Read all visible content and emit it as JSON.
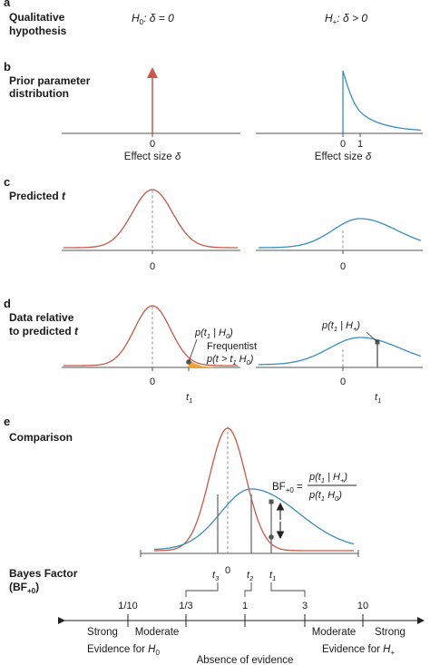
{
  "panels": {
    "a": {
      "letter": "a",
      "title_line1": "Qualitative",
      "title_line2": "hypothesis",
      "h0_hyp": "H",
      "h0_sub": "0",
      "h0_rest": ": δ = 0",
      "hplus_hyp": "H",
      "hplus_sub": "+",
      "hplus_rest": ": δ > 0"
    },
    "b": {
      "letter": "b",
      "title_line1": "Prior parameter",
      "title_line2": "distribution",
      "left_tick": "0",
      "right_tick0": "0",
      "right_tick1": "1",
      "xlabel": "Effect size",
      "xlabel_sym": "δ"
    },
    "c": {
      "letter": "c",
      "title": "Predicted",
      "title_sym": "t",
      "left_tick": "0",
      "right_tick": "0"
    },
    "d": {
      "letter": "d",
      "title_line1": "Data relative",
      "title_line2": "to predicted",
      "title_sym": "t",
      "left_annot": "p(t",
      "left_annot_sub": "1",
      "left_annot_rest": " | H",
      "left_annot_sub2": "0",
      "left_annot_end": ")",
      "frequentist_label": "Frequentist",
      "freq_annot": "p(t > t",
      "freq_annot_sub": "1",
      "freq_annot_rest": "  H",
      "freq_annot_sub2": "0",
      "freq_annot_end": ")",
      "left_tick": "0",
      "left_t": "t",
      "left_t_sub": "1",
      "right_annot": "p(t",
      "right_annot_sub": "1",
      "right_annot_rest": " | H",
      "right_annot_sub2": "+",
      "right_annot_end": ")",
      "right_tick": "0",
      "right_t": "t",
      "right_t_sub": "1"
    },
    "e": {
      "letter": "e",
      "title": "Comparison",
      "bf_label": "BF",
      "bf_sub": "+0",
      "bf_eq": " = ",
      "num": "p(t",
      "num_sub": "1",
      "num_rest": " | H",
      "num_sub2": "+",
      "num_end": ")",
      "den": "p(t",
      "den_sub": "1",
      "den_rest": "  H",
      "den_sub2": "0",
      "den_end": ")",
      "t3": "t",
      "t3_sub": "3",
      "zero": "0",
      "t2": "t",
      "t2_sub": "2",
      "t1": "t",
      "t1_sub": "1"
    },
    "scale": {
      "title_line1": "Bayes Factor",
      "title_line2": "(BF",
      "title_sub": "+0",
      "title_end": ")",
      "ticks": [
        "1/10",
        "1/3",
        "1",
        "3",
        "10"
      ],
      "left_strong": "Strong",
      "left_moderate": "Moderate",
      "right_moderate": "Moderate",
      "right_strong": "Strong",
      "evidence_h0": "Evidence for",
      "evidence_h0_sym": "H",
      "evidence_h0_sub": "0",
      "evidence_hplus": "Evidence for",
      "evidence_hplus_sym": "H",
      "evidence_hplus_sub": "+",
      "absence": "Absence of evidence"
    }
  },
  "colors": {
    "h0_curve": "#c8584a",
    "hplus_curve": "#3a8cc0",
    "tail_fill": "#f2a33a",
    "marker": "#555555"
  }
}
